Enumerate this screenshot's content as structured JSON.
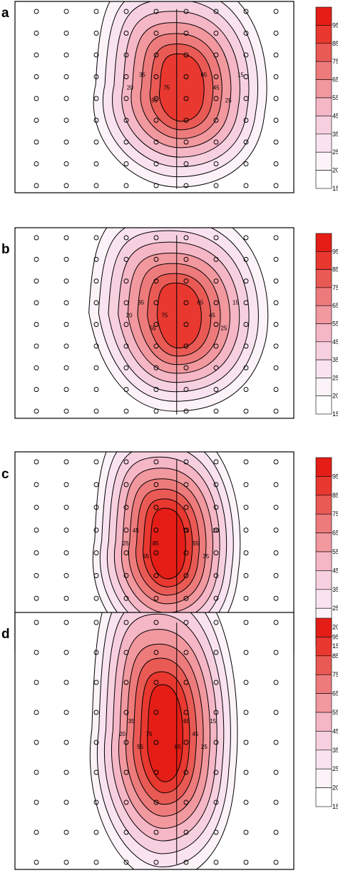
{
  "chart_data": [
    {
      "type": "heatmap",
      "panel": "a",
      "colorbar_ticks": [
        "15",
        "20",
        "25",
        "35",
        "45",
        "55",
        "65",
        "75",
        "85",
        "95"
      ],
      "peak_value": 78,
      "contour_labels": [
        "15",
        "20",
        "25",
        "35",
        "45",
        "55",
        "65",
        "75"
      ],
      "sensor_grid": {
        "columns": 9,
        "rows": 9
      },
      "midline": true
    },
    {
      "type": "heatmap",
      "panel": "b",
      "colorbar_ticks": [
        "15",
        "20",
        "25",
        "35",
        "45",
        "55",
        "65",
        "75",
        "85",
        "95"
      ],
      "peak_value": 77,
      "contour_labels": [
        "15",
        "20",
        "25",
        "35",
        "45",
        "55",
        "65",
        "75"
      ],
      "sensor_grid": {
        "columns": 9,
        "rows": 9
      },
      "midline": true
    },
    {
      "type": "heatmap",
      "panel": "c",
      "colorbar_ticks": [
        "15",
        "20",
        "25",
        "35",
        "45",
        "55",
        "65",
        "75",
        "85",
        "95"
      ],
      "peak_value": 88,
      "contour_labels": [
        "20",
        "25",
        "35",
        "45",
        "55",
        "65",
        "75",
        "85"
      ],
      "sensor_grid": {
        "columns": 9,
        "rows": 9
      },
      "midline": true
    },
    {
      "type": "heatmap",
      "panel": "d",
      "colorbar_ticks": [
        "15",
        "20",
        "25",
        "35",
        "45",
        "55",
        "65",
        "75",
        "85",
        "95"
      ],
      "peak_value": 88,
      "contour_labels": [
        "15",
        "20",
        "25",
        "35",
        "45",
        "55",
        "65",
        "75",
        "85"
      ],
      "sensor_grid": {
        "columns": 9,
        "rows": 9
      },
      "midline": true
    }
  ],
  "levels": [
    15,
    20,
    25,
    35,
    45,
    55,
    65,
    75,
    85,
    95
  ],
  "colors": {
    "15": "#ffffff",
    "20": "#fcf3f8",
    "25": "#f9e3f1",
    "35": "#f7d0e0",
    "45": "#f5b6c6",
    "55": "#f2989f",
    "65": "#ee7b7c",
    "75": "#ea5a55",
    "85": "#e8382f",
    "95": "#e41e17"
  }
}
